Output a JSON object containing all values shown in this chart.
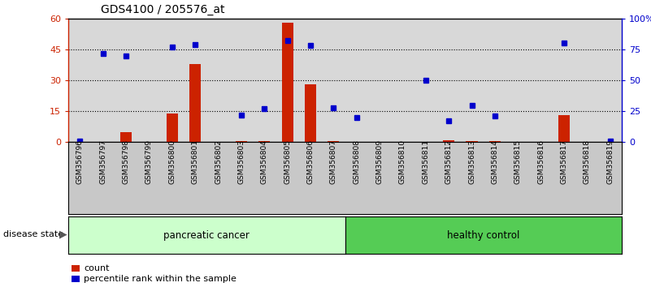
{
  "title": "GDS4100 / 205576_at",
  "samples": [
    "GSM356796",
    "GSM356797",
    "GSM356798",
    "GSM356799",
    "GSM356800",
    "GSM356801",
    "GSM356802",
    "GSM356803",
    "GSM356804",
    "GSM356805",
    "GSM356806",
    "GSM356807",
    "GSM356808",
    "GSM356809",
    "GSM356810",
    "GSM356811",
    "GSM356812",
    "GSM356813",
    "GSM356814",
    "GSM356815",
    "GSM356816",
    "GSM356817",
    "GSM356818",
    "GSM356819"
  ],
  "count": [
    0,
    0,
    5,
    0,
    14,
    38,
    0,
    0.5,
    0.5,
    58,
    28,
    0.5,
    0,
    0,
    0,
    0,
    1,
    0.5,
    0.5,
    0,
    0,
    13,
    0,
    0
  ],
  "percentile": [
    1,
    72,
    70,
    null,
    77,
    79,
    null,
    22,
    27,
    82,
    78,
    28,
    20,
    null,
    null,
    50,
    17,
    30,
    21,
    null,
    null,
    80,
    null,
    1
  ],
  "ylim_left": [
    0,
    60
  ],
  "ylim_right": [
    0,
    100
  ],
  "yticks_left": [
    0,
    15,
    30,
    45,
    60
  ],
  "yticks_right": [
    0,
    25,
    50,
    75,
    100
  ],
  "yticklabels_left": [
    "0",
    "15",
    "30",
    "45",
    "60"
  ],
  "yticklabels_right": [
    "0",
    "25",
    "50",
    "75",
    "100%"
  ],
  "bar_color": "#cc2200",
  "dot_color": "#0000cc",
  "group1_label": "pancreatic cancer",
  "group2_label": "healthy control",
  "group1_color": "#ccffcc",
  "group2_color": "#55cc55",
  "group1_count": 12,
  "legend_count_label": "count",
  "legend_pct_label": "percentile rank within the sample",
  "disease_state_label": "disease state",
  "axis_left_color": "#cc2200",
  "axis_right_color": "#0000cc",
  "bg_color": "#d8d8d8",
  "xtick_bg_color": "#c8c8c8"
}
